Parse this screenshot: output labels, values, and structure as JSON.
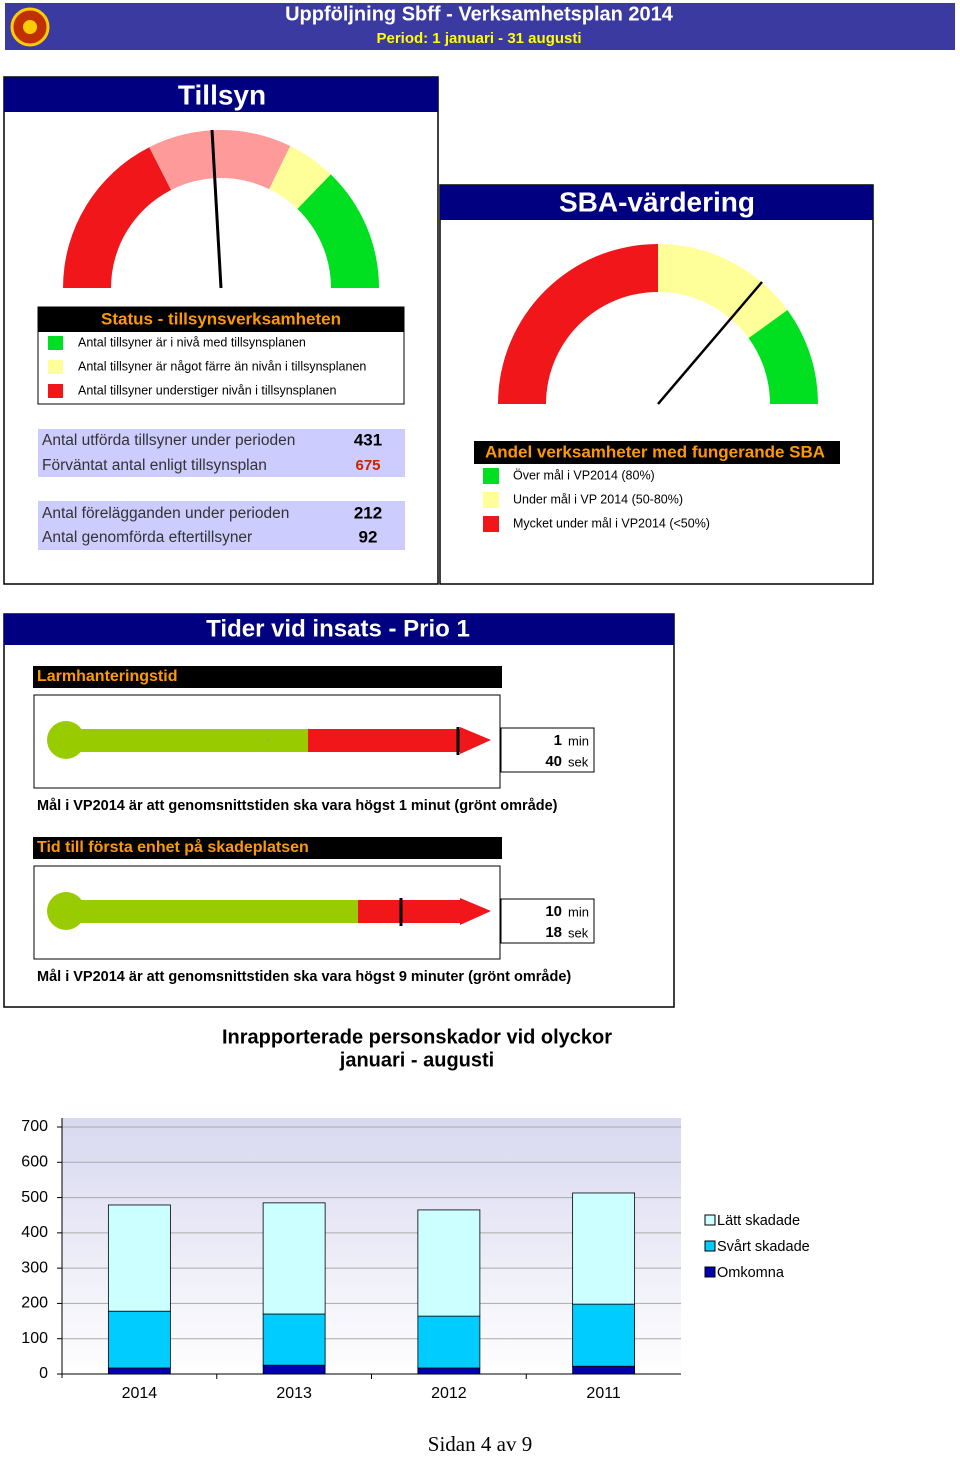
{
  "header": {
    "title": "Uppföljning Sbff - Verksamhetsplan 2014",
    "period": "Period: 1 januari - 31 augusti"
  },
  "tillsyn": {
    "title": "Tillsyn",
    "legend_title": "Status - tillsynsverksamheten",
    "legend": [
      "Antal tillsyner är i nivå med tillsynsplanen",
      "Antal tillsyner är något färre än nivån i tillsynsplanen",
      "Antal tillsyner understiger nivån i tillsynsplanen"
    ],
    "stats": [
      {
        "label": "Antal utförda tillsyner under perioden",
        "value": 431
      },
      {
        "label": "Förväntat antal enligt tillsynsplan",
        "value": 675
      },
      {
        "label": "Antal förelägganden under perioden",
        "value": 212
      },
      {
        "label": "Antal genomförda eftertillsyner",
        "value": 92
      }
    ]
  },
  "sba": {
    "title": "SBA-värdering",
    "legend_title": "Andel verksamheter med fungerande SBA",
    "legend": [
      "Över mål i VP2014 (80%)",
      "Under mål i VP 2014 (50-80%)",
      "Mycket under mål i VP2014 (<50%)"
    ]
  },
  "insats": {
    "title": "Tider vid insats - Prio 1",
    "items": [
      {
        "heading": "Larmhanteringstid",
        "marker_label": "-",
        "minutes": 1,
        "min_unit": "min",
        "seconds": 40,
        "sec_unit": "sek",
        "goal": "Mål i VP2014 är att genomsnittstiden ska vara högst 1 minut (grönt område)"
      },
      {
        "heading": "Tid till första enhet på skadeplatsen",
        "minutes": 10,
        "min_unit": "min",
        "seconds": 18,
        "sec_unit": "sek",
        "goal": "Mål i VP2014 är att genomsnittstiden ska vara högst 9 minuter (grönt område)"
      }
    ]
  },
  "chart_data": {
    "type": "stacked-bar",
    "title": "Inrapporterade personskador vid olyckor",
    "subtitle": "januari - augusti",
    "categories": [
      "2014",
      "2013",
      "2012",
      "2011"
    ],
    "series": [
      {
        "name": "Omkomna",
        "color": "#0000b0",
        "values": [
          17,
          25,
          17,
          22
        ]
      },
      {
        "name": "Svårt skadade",
        "color": "#00ccff",
        "values": [
          161,
          145,
          147,
          176
        ]
      },
      {
        "name": "Lätt skadade",
        "color": "#ccffff",
        "values": [
          301,
          315,
          301,
          315
        ]
      }
    ],
    "ylim": [
      0,
      700
    ],
    "yticks": [
      0,
      100,
      200,
      300,
      400,
      500,
      600,
      700
    ],
    "grid": true
  },
  "footer": "Sidan 4 av 9"
}
